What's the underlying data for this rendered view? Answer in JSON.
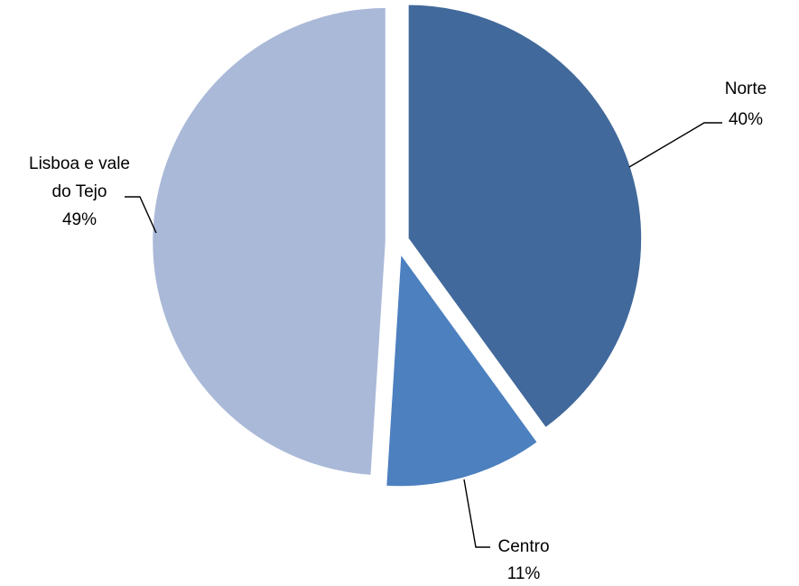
{
  "chart_data": {
    "type": "pie",
    "title": "",
    "slices": [
      {
        "label_lines": [
          "Norte"
        ],
        "value": 40,
        "value_label": "40%",
        "color": "#41699B"
      },
      {
        "label_lines": [
          "Centro"
        ],
        "value": 11,
        "value_label": "11%",
        "color": "#4C80BF"
      },
      {
        "label_lines": [
          "Lisboa e vale",
          "do Tejo"
        ],
        "value": 49,
        "value_label": "49%",
        "color": "#AAB9D8"
      }
    ],
    "exploded": true,
    "legend": "none",
    "data_labels": "category and percentage, outside with leader lines"
  }
}
